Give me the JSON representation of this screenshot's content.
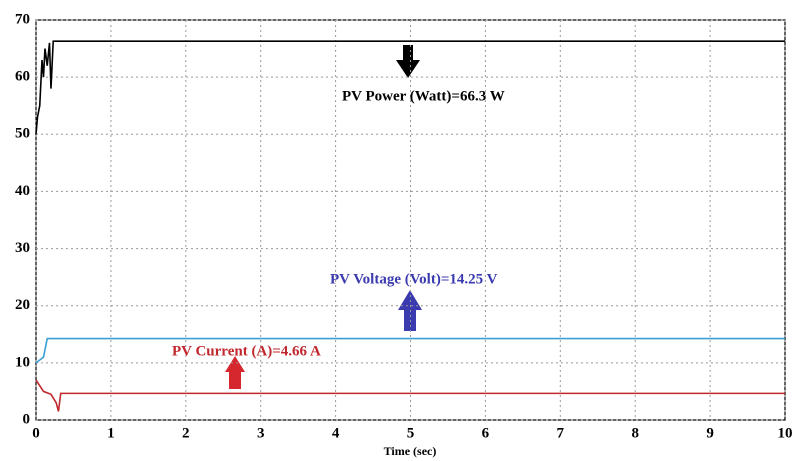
{
  "chart_data": {
    "type": "line",
    "xlabel": "Time (sec)",
    "xlim": [
      0,
      10
    ],
    "xticks": [
      0,
      1,
      2,
      3,
      4,
      5,
      6,
      7,
      8,
      9,
      10
    ],
    "ylim": [
      0,
      70
    ],
    "yticks": [
      0,
      10,
      20,
      30,
      40,
      50,
      60,
      70
    ],
    "grid": true,
    "series": [
      {
        "color": "#000000",
        "x": [
          0,
          0.02,
          0.05,
          0.08,
          0.1,
          0.12,
          0.15,
          0.18,
          0.2,
          0.23,
          10
        ],
        "values": [
          50,
          53,
          55,
          63,
          60,
          65,
          62,
          66,
          58,
          66.3,
          66.3
        ]
      },
      {
        "color": "#3a9fd6",
        "x": [
          0,
          0.05,
          0.1,
          0.15,
          10
        ],
        "values": [
          10,
          10.5,
          11,
          14.25,
          14.25
        ]
      },
      {
        "color": "#c0282e",
        "x": [
          0,
          0.1,
          0.2,
          0.27,
          0.3,
          0.33,
          10
        ],
        "values": [
          7,
          5,
          4.5,
          3,
          1.5,
          4.66,
          4.66
        ]
      }
    ],
    "annotations": [
      {
        "text": "PV Power (Watt)=66.3 W",
        "color": "#000000"
      },
      {
        "text": "PV Voltage (Volt)=14.25 V",
        "color": "#3b3bb0"
      },
      {
        "text": "PV Current (A)=4.66 A",
        "color": "#c0282e"
      }
    ]
  }
}
